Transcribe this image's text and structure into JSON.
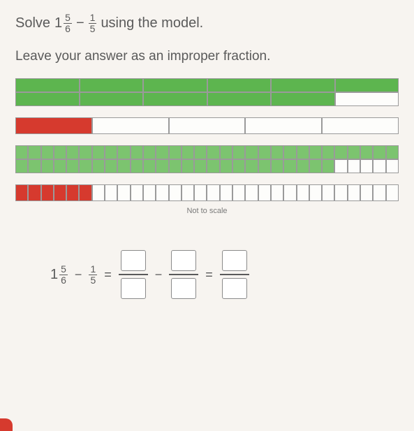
{
  "prompt": {
    "pre": "Solve",
    "mixed_whole": "1",
    "f1_num": "5",
    "f1_den": "6",
    "op": "−",
    "f2_num": "1",
    "f2_den": "5",
    "post": "using the model."
  },
  "instruction": "Leave your answer as an improper fraction.",
  "note": "Not to scale",
  "equation": {
    "mixed_whole": "1",
    "mf_num": "5",
    "mf_den": "6",
    "op1": "−",
    "f2_num": "1",
    "f2_den": "5",
    "eq1": "=",
    "op2": "−",
    "eq2": "="
  },
  "bars": {
    "bar1": {
      "rows": 2,
      "cols": 6,
      "pattern": [
        [
          "green",
          "green",
          "green",
          "green",
          "green",
          "green"
        ],
        [
          "green",
          "green",
          "green",
          "green",
          "green",
          "white"
        ]
      ]
    },
    "bar2": {
      "rows": 1,
      "cols": 5,
      "pattern": [
        [
          "red",
          "white",
          "white",
          "white",
          "white"
        ]
      ]
    },
    "bar3": {
      "rows": 2,
      "cols": 30,
      "filled": 55,
      "color": "hgreen"
    },
    "bar4": {
      "rows": 1,
      "cols": 30,
      "filled": 6,
      "color": "red"
    }
  },
  "colors": {
    "green": "#5db54f",
    "hgreen": "#7cc46f",
    "red": "#d63a2e",
    "white": "#fdfdfb",
    "text": "#5a5a5a"
  }
}
